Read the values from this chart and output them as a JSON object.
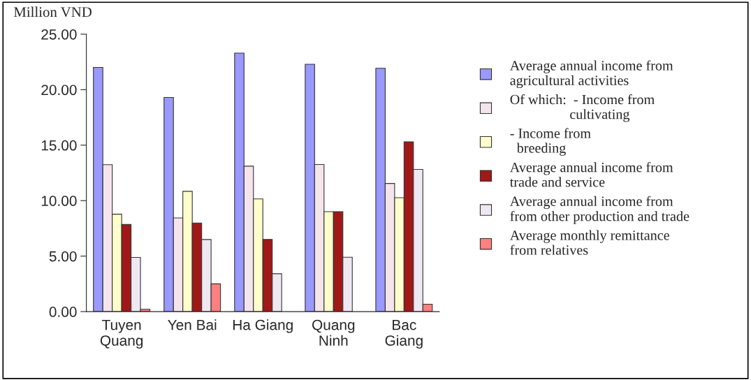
{
  "chart_data": {
    "type": "bar",
    "ylabel": "Million VND",
    "categories": [
      "Tuyen\nQuang",
      "Yen Bai",
      "Ha Giang",
      "Quang\nNinh",
      "Bac\nGiang"
    ],
    "series": [
      {
        "name": "Average annual income from\nagricultural activities",
        "color": "#9999ff",
        "values": [
          22.01,
          19.3,
          23.3,
          22.29,
          21.93
        ]
      },
      {
        "name": "Of which:  - Income from\n                 cultivating",
        "color": "#f4e4ec",
        "values": [
          13.24,
          8.44,
          13.11,
          13.26,
          11.55
        ]
      },
      {
        "name": "- Income from\n  breeding",
        "color": "#ffffcc",
        "values": [
          8.78,
          10.84,
          10.16,
          9.01,
          10.27
        ]
      },
      {
        "name": "Average annual income from\ntrade and service",
        "color": "#a01818",
        "values": [
          7.85,
          7.98,
          6.5,
          9.01,
          15.3
        ]
      },
      {
        "name": "Average annual income from\nfrom other production and trade",
        "color": "#eee8f2",
        "values": [
          4.88,
          6.5,
          3.41,
          4.9,
          12.82
        ]
      },
      {
        "name": "Average monthly remittance\nfrom relatives",
        "color": "#ff8080",
        "values": [
          0.21,
          2.5,
          null,
          null,
          0.67
        ]
      }
    ],
    "ylim": [
      0,
      25
    ],
    "yticks": [
      {
        "value": 0,
        "label": "0.00"
      },
      {
        "value": 5,
        "label": "5.00"
      },
      {
        "value": 10,
        "label": "10.00"
      },
      {
        "value": 15,
        "label": "15.00"
      },
      {
        "value": 20,
        "label": "20.00"
      },
      {
        "value": 25,
        "label": "25.00"
      }
    ],
    "grid": false,
    "legend": "right"
  }
}
